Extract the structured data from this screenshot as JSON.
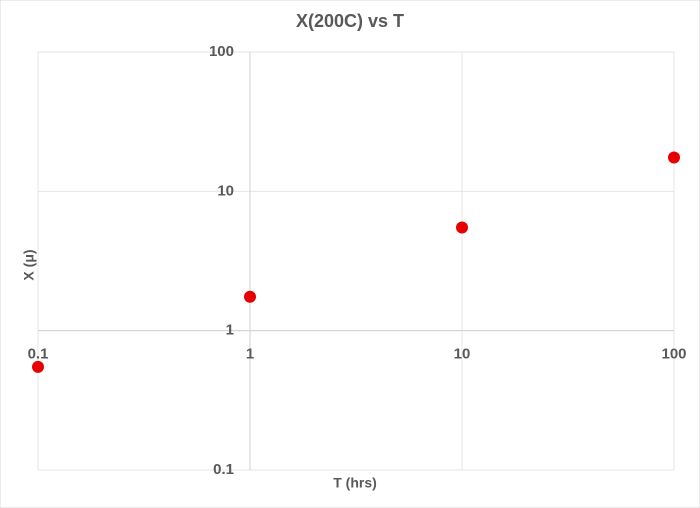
{
  "chart_data": {
    "type": "scatter",
    "title": "X(200C) vs T",
    "x_label": "T (hrs)",
    "y_label": "X (μ)",
    "x": [
      0.1,
      1,
      10,
      100
    ],
    "series": [
      {
        "name": "X(200C)",
        "color": "#e60000",
        "values": [
          0.55,
          1.75,
          5.5,
          17.5
        ]
      }
    ],
    "xlim": [
      0.1,
      100
    ],
    "ylim": [
      0.1,
      100
    ],
    "xticks": [
      0.1,
      1,
      10,
      100
    ],
    "yticks": [
      0.1,
      1,
      10,
      100
    ],
    "xscale": "log",
    "yscale": "log",
    "grid": true
  }
}
